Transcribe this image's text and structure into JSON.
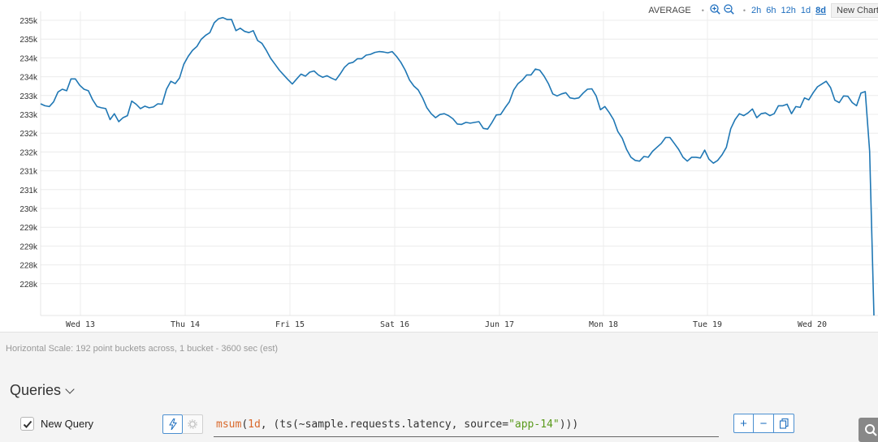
{
  "toolbar": {
    "summarization": "AVERAGE",
    "ranges": [
      "2h",
      "6h",
      "12h",
      "1d",
      "8d"
    ],
    "active_range": "8d",
    "new_chart_label": "New Chart"
  },
  "chart_data": {
    "type": "line",
    "title": "",
    "xlabel": "",
    "ylabel": "",
    "x_tick_labels": [
      "Wed 13",
      "Thu 14",
      "Fri 15",
      "Sat 16",
      "Jun 17",
      "Mon 18",
      "Tue 19",
      "Wed 20"
    ],
    "y_tick_labels": [
      "235k",
      "235k",
      "234k",
      "234k",
      "233k",
      "233k",
      "232k",
      "232k",
      "231k",
      "231k",
      "230k",
      "229k",
      "229k",
      "228k",
      "228k"
    ],
    "ylim": [
      227700,
      235100
    ],
    "grid": true,
    "series_color": "#1f77b4",
    "series": [
      {
        "values": [
          233050,
          233000,
          232980,
          233100,
          233350,
          233420,
          233380,
          233680,
          233680,
          233520,
          233420,
          233380,
          233150,
          232980,
          232950,
          232930,
          232650,
          232800,
          232600,
          232700,
          232750,
          233120,
          233040,
          232930,
          232990,
          232950,
          232970,
          233050,
          233040,
          233420,
          233620,
          233560,
          233700,
          234050,
          234250,
          234400,
          234500,
          234680,
          234780,
          234850,
          235100,
          235200,
          235230,
          235180,
          235180,
          234900,
          234960,
          234880,
          234850,
          234900,
          234650,
          234580,
          234400,
          234200,
          234050,
          233900,
          233780,
          233660,
          233550,
          233680,
          233800,
          233750,
          233850,
          233880,
          233780,
          233720,
          233760,
          233700,
          233650,
          233800,
          233970,
          234070,
          234100,
          234190,
          234190,
          234280,
          234300,
          234350,
          234370,
          234360,
          234340,
          234370,
          234250,
          234100,
          233900,
          233650,
          233500,
          233400,
          233200,
          232950,
          232800,
          232700,
          232780,
          232800,
          232750,
          232670,
          232540,
          232530,
          232580,
          232560,
          232580,
          232600,
          232430,
          232410,
          232580,
          232770,
          232780,
          232950,
          233100,
          233400,
          233560,
          233650,
          233780,
          233780,
          233930,
          233900,
          233750,
          233560,
          233300,
          233250,
          233300,
          233330,
          233200,
          233180,
          233200,
          233320,
          233420,
          233430,
          233250,
          232900,
          232980,
          232830,
          232650,
          232350,
          232180,
          231900,
          231700,
          231620,
          231600,
          231720,
          231700,
          231850,
          231950,
          232050,
          232200,
          232200,
          232050,
          231900,
          231700,
          231600,
          231700,
          231700,
          231680,
          231880,
          231650,
          231550,
          231620,
          231760,
          231950,
          232420,
          232650,
          232800,
          232750,
          232820,
          232920,
          232700,
          232800,
          232820,
          232750,
          232800,
          233000,
          233000,
          233040,
          232800,
          232980,
          232960,
          233200,
          233150,
          233330,
          233480,
          233550,
          233620,
          233460,
          233140,
          233080,
          233250,
          233240,
          233080,
          233000,
          233320,
          233360,
          231850,
          227700
        ]
      }
    ]
  },
  "horizontal_scale_text": "Horizontal Scale: 192 point buckets across, 1 bucket - 3600 sec (est)",
  "queries": {
    "header": "Queries",
    "items": [
      {
        "name": "New Query",
        "enabled": true,
        "expression": {
          "fn": "msum",
          "open": "(",
          "arg1": "1d",
          "sep1": ", (",
          "ts": "ts",
          "ts_open": "(",
          "metric": "~sample.requests.latency",
          "sep2": ", source=",
          "source": "\"app-14\"",
          "close": ")))"
        }
      }
    ]
  },
  "icons": {
    "zoom_in": "zoom-in-icon",
    "zoom_out": "zoom-out-icon",
    "bolt": "bolt-icon",
    "gear": "gear-icon",
    "add": "plus-icon",
    "remove": "minus-icon",
    "copy": "copy-icon",
    "search": "search-icon",
    "check": "check-icon",
    "chevron": "chevron-down-icon"
  }
}
